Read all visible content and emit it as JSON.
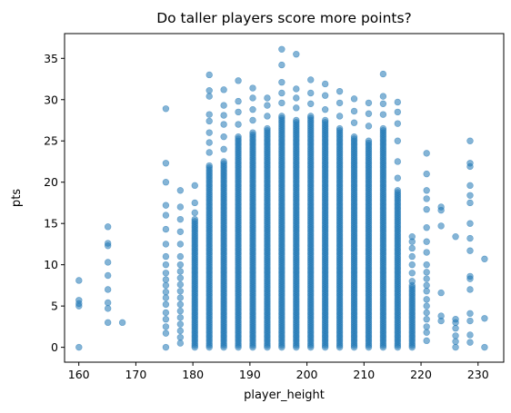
{
  "chart_data": {
    "type": "scatter",
    "title": "Do taller players score more points?",
    "xlabel": "player_height",
    "ylabel": "pts",
    "xlim": [
      157.5,
      234.5
    ],
    "ylim": [
      -1.8,
      38.0
    ],
    "xticks": [
      160,
      170,
      180,
      190,
      200,
      210,
      220,
      230
    ],
    "yticks": [
      0,
      5,
      10,
      15,
      20,
      25,
      30,
      35
    ],
    "grid": false,
    "legend": "none",
    "marker_color": "#1f77b4",
    "marker_alpha": 0.55,
    "columns": [
      {
        "x": 160.02,
        "points": [
          0,
          5.0,
          5.3,
          5.7,
          8.1
        ]
      },
      {
        "x": 165.1,
        "points": [
          3.0,
          4.7,
          5.4,
          7.0,
          8.7,
          10.3,
          12.3,
          12.6,
          14.6
        ]
      },
      {
        "x": 167.64,
        "points": [
          3.0
        ]
      },
      {
        "x": 175.26,
        "points": [
          0,
          1.7,
          2.5,
          3.4,
          4.2,
          5.2,
          6.0,
          6.7,
          7.5,
          8.2,
          9.0,
          10.0,
          11.0,
          12.5,
          14.3,
          16.0,
          17.2,
          20.0,
          22.3,
          28.9
        ]
      },
      {
        "x": 177.8,
        "points": [
          0.5,
          1.2,
          2.0,
          2.8,
          3.6,
          4.4,
          5.2,
          6.0,
          6.8,
          7.6,
          8.4,
          9.2,
          10.0,
          11.0,
          12.5,
          14.0,
          15.5,
          17.0,
          19.0
        ]
      },
      {
        "x": 180.34,
        "dense_max": 15.5,
        "extras": [
          16.3,
          17.5,
          19.6
        ]
      },
      {
        "x": 182.88,
        "dense_max": 22.0,
        "extras": [
          23.6,
          24.8,
          26.0,
          27.4,
          28.2,
          30.4,
          31.1,
          33.0
        ]
      },
      {
        "x": 185.42,
        "dense_max": 22.5,
        "extras": [
          24.0,
          25.5,
          27.0,
          28.1,
          29.3,
          31.2
        ]
      },
      {
        "x": 187.96,
        "dense_max": 25.5,
        "extras": [
          27.0,
          28.5,
          29.8,
          32.3
        ]
      },
      {
        "x": 190.5,
        "dense_max": 26.0,
        "extras": [
          27.5,
          28.8,
          30.2,
          31.4
        ]
      },
      {
        "x": 193.04,
        "dense_max": 26.5,
        "extras": [
          28.0,
          29.3,
          30.2
        ]
      },
      {
        "x": 195.58,
        "dense_max": 28.0,
        "extras": [
          29.6,
          30.8,
          32.1,
          34.2,
          36.1
        ]
      },
      {
        "x": 198.12,
        "dense_max": 27.5,
        "extras": [
          29.0,
          30.2,
          31.3,
          35.5
        ]
      },
      {
        "x": 200.66,
        "dense_max": 28.0,
        "extras": [
          29.5,
          30.8,
          32.4
        ]
      },
      {
        "x": 203.2,
        "dense_max": 27.5,
        "extras": [
          28.8,
          30.5,
          31.9
        ]
      },
      {
        "x": 205.74,
        "dense_max": 26.5,
        "extras": [
          28.0,
          29.6,
          31.0
        ]
      },
      {
        "x": 208.28,
        "dense_max": 25.5,
        "extras": [
          27.2,
          28.6,
          30.1
        ]
      },
      {
        "x": 210.82,
        "dense_max": 25.0,
        "extras": [
          26.8,
          28.3,
          29.6
        ]
      },
      {
        "x": 213.36,
        "dense_max": 26.5,
        "extras": [
          28.2,
          29.5,
          30.4,
          33.1
        ]
      },
      {
        "x": 215.9,
        "dense_max": 19.0,
        "extras": [
          20.5,
          22.5,
          25.0,
          27.1,
          28.5,
          29.7
        ]
      },
      {
        "x": 218.44,
        "dense_max": 7.5,
        "extras": [
          8.0,
          9.0,
          10.0,
          11.0,
          12.0,
          12.8,
          13.4
        ]
      },
      {
        "x": 220.98,
        "points": [
          0.8,
          1.8,
          2.5,
          3.4,
          4.2,
          5.0,
          5.8,
          6.8,
          7.5,
          8.3,
          9.1,
          10.0,
          11.5,
          12.8,
          14.5,
          16.7,
          18.0,
          19.0,
          21.0,
          23.5
        ]
      },
      {
        "x": 223.52,
        "points": [
          3.2,
          3.8,
          6.6,
          14.7,
          16.6,
          17.0
        ]
      },
      {
        "x": 226.06,
        "points": [
          0,
          0.7,
          1.4,
          2.3,
          3.0,
          3.4,
          13.4
        ]
      },
      {
        "x": 228.6,
        "points": [
          0.6,
          1.5,
          3.2,
          4.1,
          7.0,
          8.3,
          8.6,
          11.7,
          13.2,
          15.0,
          17.5,
          18.4,
          19.6,
          21.9,
          22.3,
          25.0
        ]
      },
      {
        "x": 231.14,
        "points": [
          0,
          3.5,
          10.7
        ]
      }
    ]
  }
}
